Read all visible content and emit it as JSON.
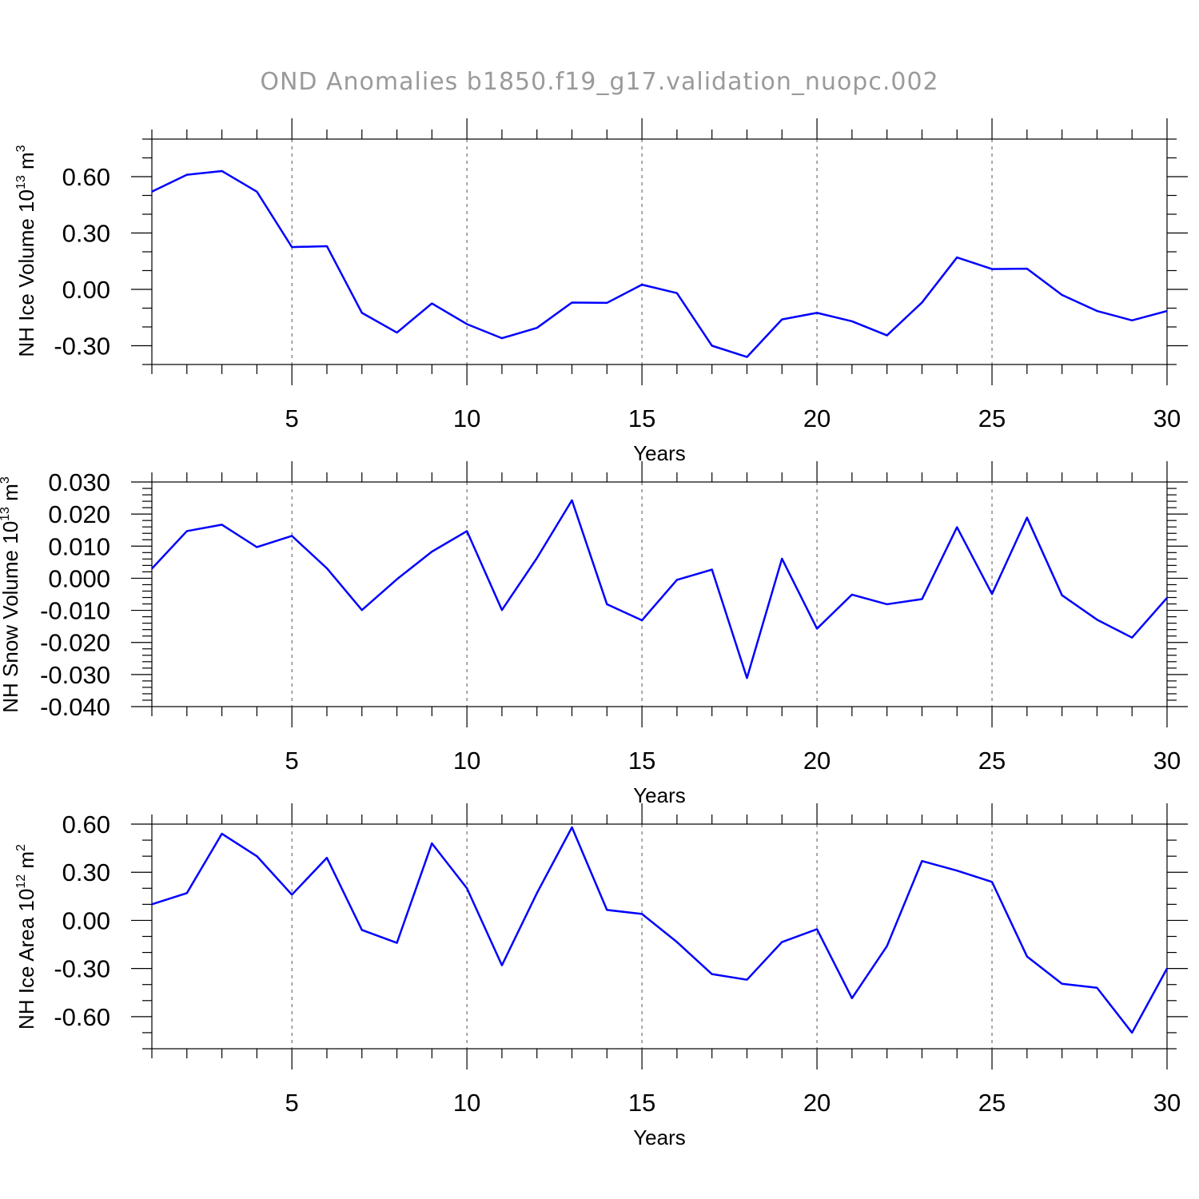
{
  "title": "OND Anomalies b1850.f19_g17.validation_nuopc.002",
  "colors": {
    "line": "#0000ff",
    "title": "#9a9a9a",
    "axis": "#000000"
  },
  "chart_data": [
    {
      "type": "line",
      "ylabel_main": "NH Ice Volume 10",
      "ylabel_sup": "13",
      "ylabel_unit": " m",
      "ylabel_unit_sup": "3",
      "xlabel": "Years",
      "xlim": [
        1,
        30
      ],
      "ylim": [
        -0.4,
        0.8
      ],
      "xticks": [
        5,
        10,
        15,
        20,
        25,
        30
      ],
      "xtick_labels": [
        "5",
        "10",
        "15",
        "20",
        "25",
        "30"
      ],
      "yticks": [
        -0.3,
        0.0,
        0.3,
        0.6
      ],
      "ytick_labels": [
        "-0.30",
        "0.00",
        "0.30",
        "0.60"
      ],
      "y_minor_step": 0.1,
      "grid_x": true,
      "x": [
        1,
        2,
        3,
        4,
        5,
        6,
        7,
        8,
        9,
        10,
        11,
        12,
        13,
        14,
        15,
        16,
        17,
        18,
        19,
        20,
        21,
        22,
        23,
        24,
        25,
        26,
        27,
        28,
        29,
        30
      ],
      "values": [
        0.52,
        0.61,
        0.63,
        0.52,
        0.225,
        0.23,
        -0.125,
        -0.23,
        -0.075,
        -0.185,
        -0.26,
        -0.205,
        -0.07,
        -0.072,
        0.025,
        -0.02,
        -0.3,
        -0.36,
        -0.16,
        -0.125,
        -0.17,
        -0.245,
        -0.07,
        0.17,
        0.108,
        0.11,
        -0.03,
        -0.115,
        -0.165,
        -0.115
      ]
    },
    {
      "type": "line",
      "ylabel_main": "NH Snow Volume 10",
      "ylabel_sup": "13",
      "ylabel_unit": " m",
      "ylabel_unit_sup": "3",
      "xlabel": "Years",
      "xlim": [
        1,
        30
      ],
      "ylim": [
        -0.04,
        0.03
      ],
      "xticks": [
        5,
        10,
        15,
        20,
        25,
        30
      ],
      "xtick_labels": [
        "5",
        "10",
        "15",
        "20",
        "25",
        "30"
      ],
      "yticks": [
        -0.04,
        -0.03,
        -0.02,
        -0.01,
        0.0,
        0.01,
        0.02,
        0.03
      ],
      "ytick_labels": [
        "-0.040",
        "-0.030",
        "-0.020",
        "-0.010",
        "0.000",
        "0.010",
        "0.020",
        "0.030"
      ],
      "y_minor_step": 0.002,
      "grid_x": true,
      "x": [
        1,
        2,
        3,
        4,
        5,
        6,
        7,
        8,
        9,
        10,
        11,
        12,
        13,
        14,
        15,
        16,
        17,
        18,
        19,
        20,
        21,
        22,
        23,
        24,
        25,
        26,
        27,
        28,
        29,
        30
      ],
      "values": [
        0.003,
        0.0147,
        0.0167,
        0.0097,
        0.0132,
        0.0031,
        -0.0099,
        -0.0003,
        0.0083,
        0.0147,
        -0.0099,
        0.0063,
        0.0243,
        -0.0081,
        -0.0131,
        -0.0005,
        0.0027,
        -0.0311,
        0.0061,
        -0.0157,
        -0.0051,
        -0.0081,
        -0.0065,
        0.0159,
        -0.0049,
        0.0189,
        -0.0053,
        -0.0129,
        -0.0185,
        -0.0061
      ]
    },
    {
      "type": "line",
      "ylabel_main": "NH Ice Area 10",
      "ylabel_sup": "12",
      "ylabel_unit": " m",
      "ylabel_unit_sup": "2",
      "xlabel": "Years",
      "xlim": [
        1,
        30
      ],
      "ylim": [
        -0.8,
        0.6
      ],
      "xticks": [
        5,
        10,
        15,
        20,
        25,
        30
      ],
      "xtick_labels": [
        "5",
        "10",
        "15",
        "20",
        "25",
        "30"
      ],
      "yticks": [
        -0.6,
        -0.3,
        0.0,
        0.3,
        0.6
      ],
      "ytick_labels": [
        "-0.60",
        "-0.30",
        "0.00",
        "0.30",
        "0.60"
      ],
      "y_minor_step": 0.1,
      "grid_x": true,
      "x": [
        1,
        2,
        3,
        4,
        5,
        6,
        7,
        8,
        9,
        10,
        11,
        12,
        13,
        14,
        15,
        16,
        17,
        18,
        19,
        20,
        21,
        22,
        23,
        24,
        25,
        26,
        27,
        28,
        29,
        30
      ],
      "values": [
        0.1,
        0.17,
        0.54,
        0.4,
        0.16,
        0.39,
        -0.06,
        -0.14,
        0.48,
        0.2,
        -0.28,
        0.17,
        0.58,
        0.065,
        0.04,
        -0.135,
        -0.335,
        -0.37,
        -0.135,
        -0.055,
        -0.485,
        -0.16,
        0.37,
        0.31,
        0.24,
        -0.225,
        -0.395,
        -0.42,
        -0.7,
        -0.3
      ]
    }
  ]
}
